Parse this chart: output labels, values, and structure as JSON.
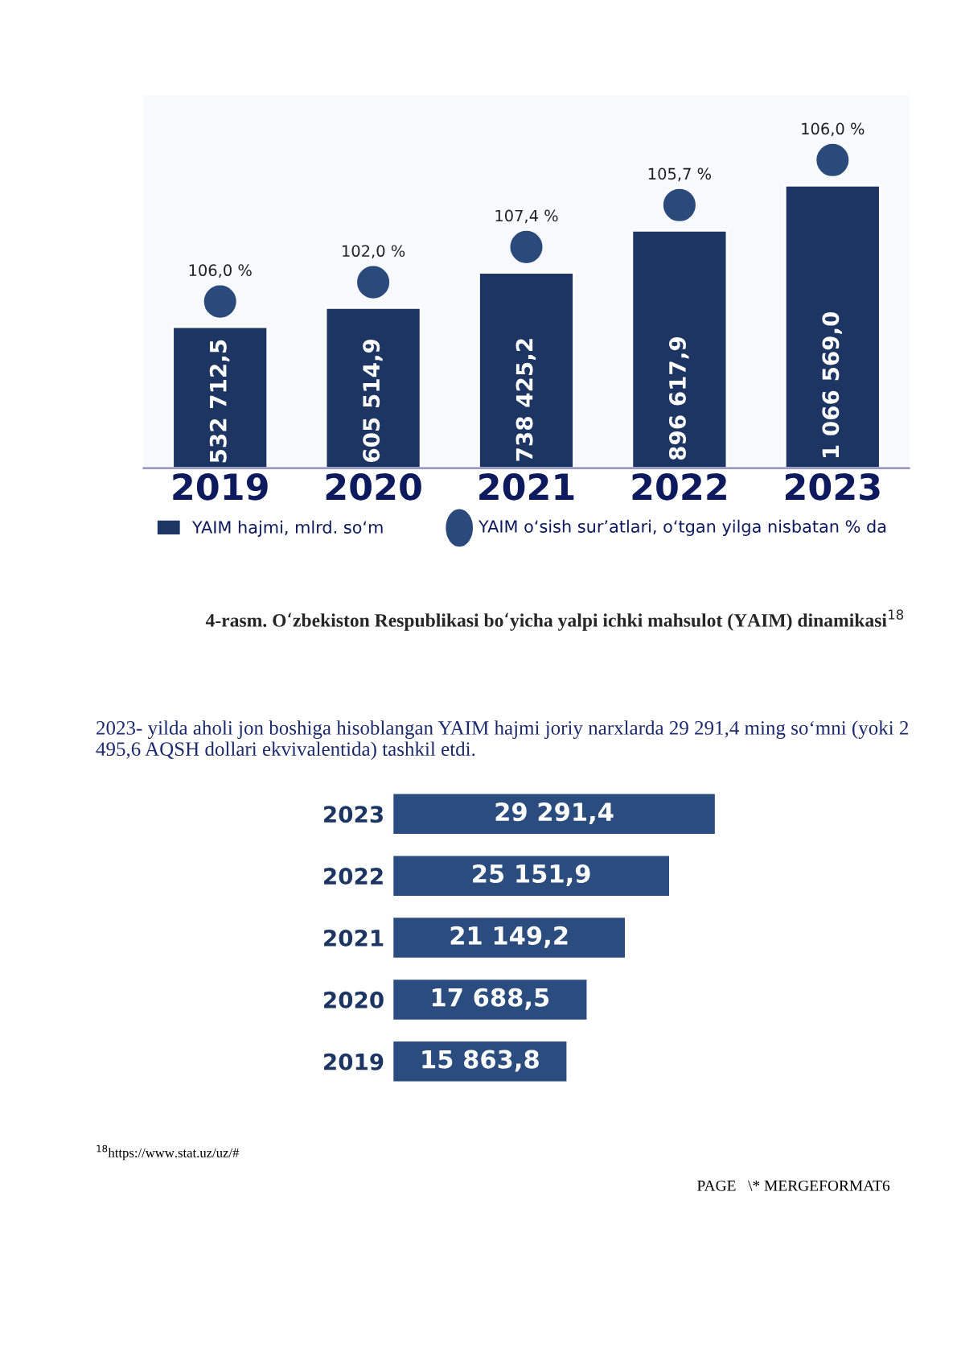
{
  "chart_data": [
    {
      "type": "bar",
      "categories": [
        "2019",
        "2020",
        "2021",
        "2022",
        "2023"
      ],
      "series": [
        {
          "name": "YAIM hajmi, mlrd. so‘m",
          "color": "#1c3563",
          "values": [
            532712.5,
            605514.9,
            738425.2,
            896617.9,
            1066569.0
          ],
          "value_labels": [
            "532 712,5",
            "605 514,9",
            "738 425,2",
            "896 617,9",
            "1 066 569,0"
          ]
        }
      ],
      "tick_labels": "x",
      "legend": "bottom left",
      "annotations": [
        "4-rasm. O‘zbekiston Respublikasi bo‘yicha yalpi ichki mahsulot (YAIM) dinamikasi$^{18}$",
        "YAIM o‘sish sur’atlari, o‘tgan yilga nisbatan % da",
        "106,0 %",
        "102,0 %",
        "107,4 %",
        "105,7 %",
        "106,0 %"
      ]
    },
    {
      "type": "bar",
      "orientation": "horizontal",
      "categories": [
        "2023",
        "2022",
        "2021",
        "2020",
        "2019"
      ],
      "series": [
        {
          "color": "#2b4c7e",
          "values": [
            29291.4,
            25151.9,
            21149.2,
            17688.5,
            15863.8
          ],
          "value_labels": [
            "29 291,4",
            "25 151,9",
            "21 149,2",
            "17 688,5",
            "15 863,8"
          ]
        }
      ],
      "tick_labels": "y",
      "annotations": [
        "2023- yilda aholi jon boshiga hisoblangan YAIM hajmi joriy narxlarda 29 291,4 ming so‘mni (yoki 2 495,6 AQSH dollari ekvivalentida) tashkil etdi.",
        "$^{18}$https://www.stat.uz/uz/#",
        "PAGE   \\* MERGEFORMAT6"
      ]
    }
  ]
}
